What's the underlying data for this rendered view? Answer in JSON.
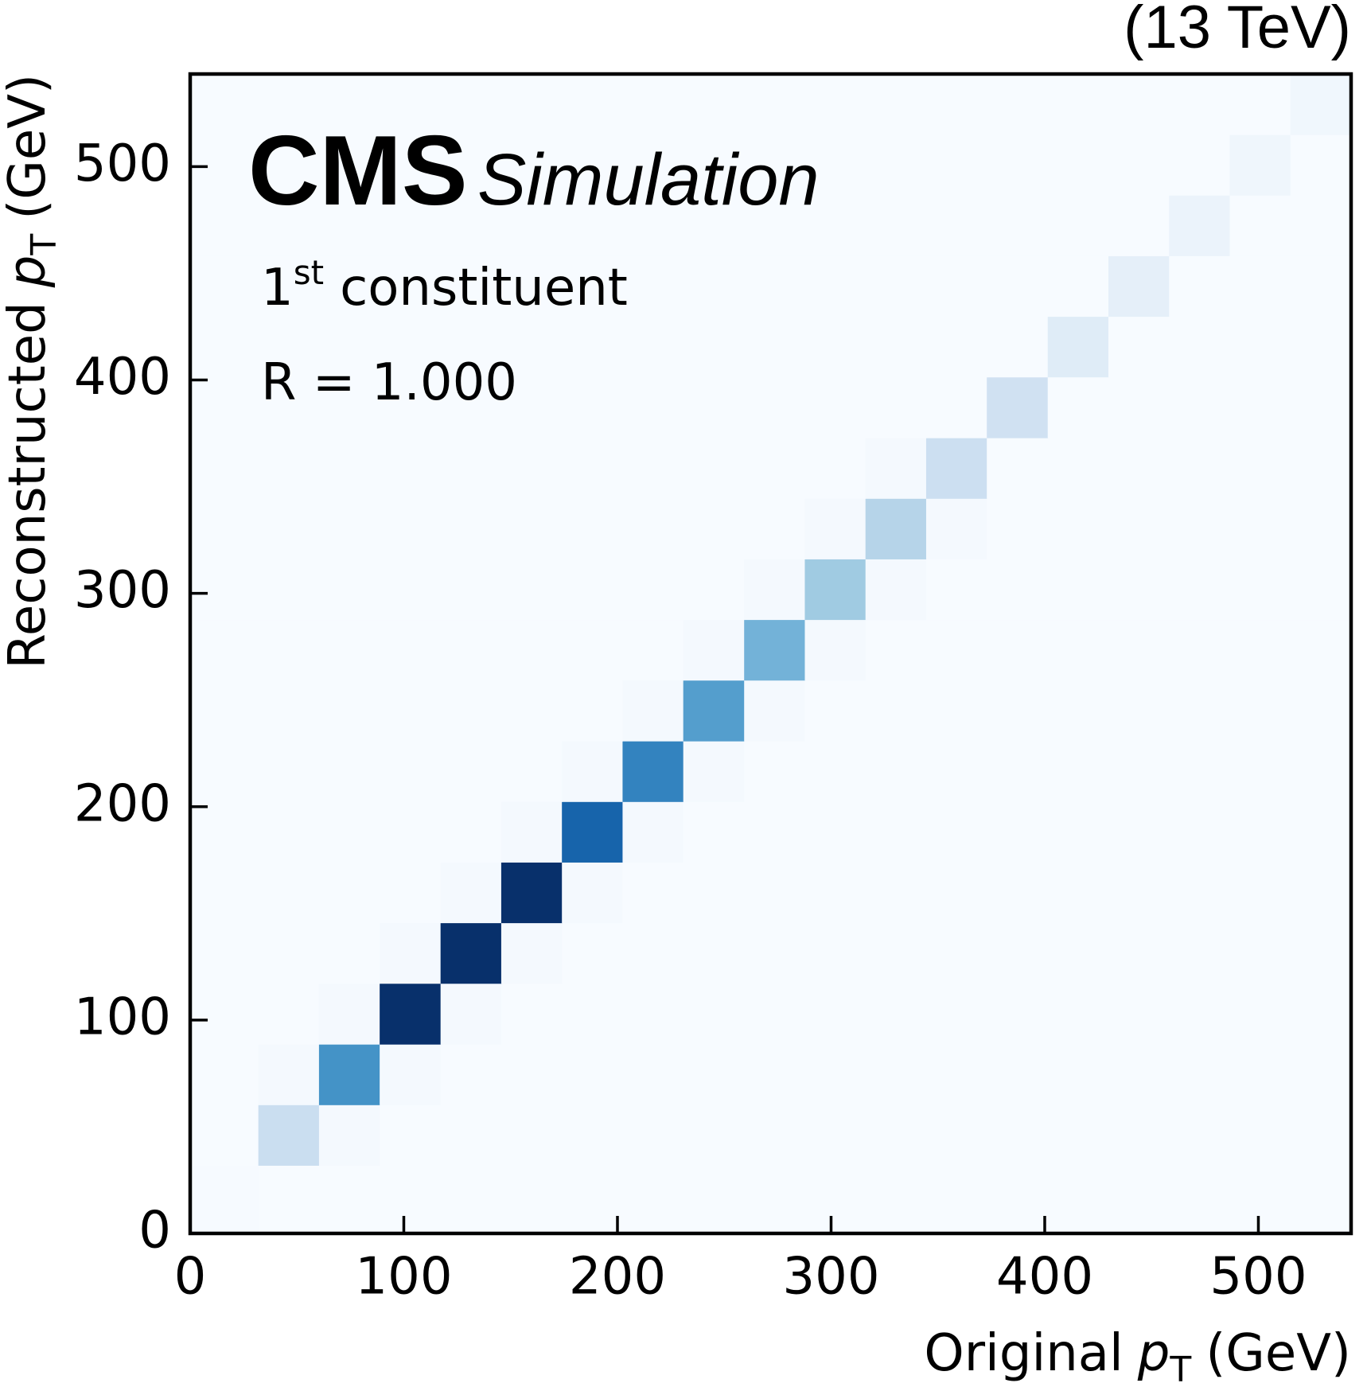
{
  "chart_data": {
    "type": "heatmap",
    "energy_label": "(13 TeV)",
    "experiment": "CMS",
    "status": "Simulation",
    "annotation_number": "1",
    "annotation_sup": "st",
    "annotation_text": "constituent",
    "radius_label": "R = 1.000",
    "xlabel": {
      "text": "Original",
      "var": "p",
      "sub": "T",
      "unit": "(GeV)"
    },
    "ylabel": {
      "text": "Reconstructed",
      "var": "p",
      "sub": "T",
      "unit": "(GeV)"
    },
    "colormap": "Blues",
    "zlim": [
      0,
      1
    ],
    "xlim": [
      0,
      543.4
    ],
    "ylim": [
      0,
      543.4
    ],
    "xticks": [
      0,
      100,
      200,
      300,
      400,
      500
    ],
    "yticks": [
      0,
      100,
      200,
      300,
      400,
      500
    ],
    "xbins": [
      0,
      31.9,
      60.3,
      88.7,
      117.2,
      145.6,
      174.0,
      202.4,
      230.8,
      259.3,
      287.7,
      316.1,
      344.5,
      372.9,
      401.4,
      429.8,
      458.2,
      486.6,
      515.0,
      543.4
    ],
    "ybins": [
      0,
      31.9,
      60.3,
      88.7,
      117.2,
      145.6,
      174.0,
      202.4,
      230.8,
      259.3,
      287.7,
      316.1,
      344.5,
      372.9,
      401.4,
      429.8,
      458.2,
      486.6,
      515.0,
      543.4
    ],
    "z": [
      [
        0.005,
        0,
        0,
        0,
        0,
        0,
        0,
        0,
        0,
        0,
        0,
        0,
        0,
        0,
        0,
        0,
        0,
        0,
        0
      ],
      [
        0,
        0.23,
        0.015,
        0,
        0,
        0,
        0,
        0,
        0,
        0,
        0,
        0,
        0,
        0,
        0,
        0,
        0,
        0,
        0
      ],
      [
        0,
        0.015,
        0.62,
        0.015,
        0,
        0,
        0,
        0,
        0,
        0,
        0,
        0,
        0,
        0,
        0,
        0,
        0,
        0,
        0
      ],
      [
        0,
        0,
        0.015,
        1.0,
        0.015,
        0,
        0,
        0,
        0,
        0,
        0,
        0,
        0,
        0,
        0,
        0,
        0,
        0,
        0
      ],
      [
        0,
        0,
        0,
        0.015,
        1.0,
        0.015,
        0,
        0,
        0,
        0,
        0,
        0,
        0,
        0,
        0,
        0,
        0,
        0,
        0
      ],
      [
        0,
        0,
        0,
        0,
        0.015,
        1.0,
        0.015,
        0,
        0,
        0,
        0,
        0,
        0,
        0,
        0,
        0,
        0,
        0,
        0
      ],
      [
        0,
        0,
        0,
        0,
        0,
        0.015,
        0.8,
        0.015,
        0,
        0,
        0,
        0,
        0,
        0,
        0,
        0,
        0,
        0,
        0
      ],
      [
        0,
        0,
        0,
        0,
        0,
        0,
        0.015,
        0.68,
        0.015,
        0,
        0,
        0,
        0,
        0,
        0,
        0,
        0,
        0,
        0
      ],
      [
        0,
        0,
        0,
        0,
        0,
        0,
        0,
        0.015,
        0.57,
        0.015,
        0,
        0,
        0,
        0,
        0,
        0,
        0,
        0,
        0
      ],
      [
        0,
        0,
        0,
        0,
        0,
        0,
        0,
        0,
        0.015,
        0.48,
        0.015,
        0,
        0,
        0,
        0,
        0,
        0,
        0,
        0
      ],
      [
        0,
        0,
        0,
        0,
        0,
        0,
        0,
        0,
        0,
        0.015,
        0.37,
        0.015,
        0,
        0,
        0,
        0,
        0,
        0,
        0
      ],
      [
        0,
        0,
        0,
        0,
        0,
        0,
        0,
        0,
        0,
        0,
        0.015,
        0.3,
        0.015,
        0,
        0,
        0,
        0,
        0,
        0
      ],
      [
        0,
        0,
        0,
        0,
        0,
        0,
        0,
        0,
        0,
        0,
        0,
        0.015,
        0.22,
        0,
        0,
        0,
        0,
        0,
        0
      ],
      [
        0,
        0,
        0,
        0,
        0,
        0,
        0,
        0,
        0,
        0,
        0,
        0,
        0,
        0.2,
        0,
        0,
        0,
        0,
        0
      ],
      [
        0,
        0,
        0,
        0,
        0,
        0,
        0,
        0,
        0,
        0,
        0,
        0,
        0,
        0,
        0.12,
        0,
        0,
        0,
        0
      ],
      [
        0,
        0,
        0,
        0,
        0,
        0,
        0,
        0,
        0,
        0,
        0,
        0,
        0,
        0,
        0,
        0.09,
        0,
        0,
        0
      ],
      [
        0,
        0,
        0,
        0,
        0,
        0,
        0,
        0,
        0,
        0,
        0,
        0,
        0,
        0,
        0,
        0,
        0.06,
        0,
        0
      ],
      [
        0,
        0,
        0,
        0,
        0,
        0,
        0,
        0,
        0,
        0,
        0,
        0,
        0,
        0,
        0,
        0,
        0,
        0.04,
        0
      ],
      [
        0,
        0,
        0,
        0,
        0,
        0,
        0,
        0,
        0,
        0,
        0,
        0,
        0,
        0,
        0,
        0,
        0,
        0,
        0.035
      ]
    ]
  }
}
